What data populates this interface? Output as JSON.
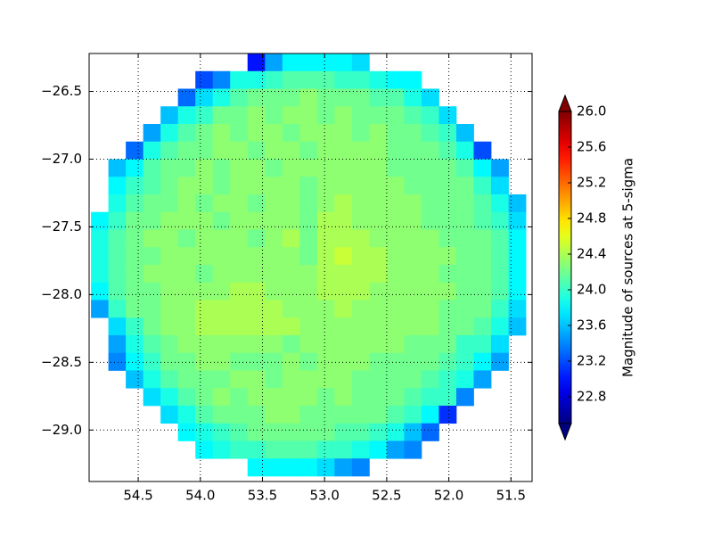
{
  "chart_data": {
    "type": "heatmap",
    "colorbar_label": "Magnitude of sources at 5-sigma",
    "colormap": "jet",
    "clim": [
      22.5,
      26.0
    ],
    "extend": "both",
    "grid": true,
    "xlim": [
      54.895,
      51.33
    ],
    "ylim": [
      -29.38,
      -26.22
    ],
    "xticks": [
      54.5,
      {
        "value": 54,
        "label": "54.0"
      },
      53.5,
      {
        "value": 53,
        "label": "53.0"
      },
      52.5,
      {
        "value": 52,
        "label": "52.0"
      },
      51.5
    ],
    "yticks": [
      {
        "value": -26.5,
        "label": "−26.5"
      },
      {
        "value": -27,
        "label": "−27.0"
      },
      {
        "value": -27.5,
        "label": "−27.5"
      },
      {
        "value": -28,
        "label": "−28.0"
      },
      {
        "value": -28.5,
        "label": "−28.5"
      },
      {
        "value": -29,
        "label": "−29.0"
      }
    ],
    "cticks": [
      22.8,
      23.2,
      23.6,
      {
        "value": 24,
        "label": "24.0"
      },
      24.4,
      24.8,
      25.2,
      25.6,
      {
        "value": 26,
        "label": "26.0"
      }
    ],
    "xbins": [
      54.88,
      54.74,
      54.6,
      54.46,
      54.32,
      54.18,
      54.04,
      53.9,
      53.76,
      53.62,
      53.48,
      53.34,
      53.2,
      53.06,
      52.92,
      52.78,
      52.64,
      52.5,
      52.36,
      52.22,
      52.08,
      51.94,
      51.8,
      51.66,
      51.52,
      51.38
    ],
    "ybins": [
      -26.22,
      -26.35,
      -26.48,
      -26.61,
      -26.74,
      -26.87,
      -27.0,
      -27.13,
      -27.26,
      -27.39,
      -27.52,
      -27.65,
      -27.78,
      -27.91,
      -28.04,
      -28.17,
      -28.3,
      -28.43,
      -28.56,
      -28.69,
      -28.82,
      -28.95,
      -29.08,
      -29.21,
      -29.34
    ],
    "values": [
      [
        null,
        null,
        null,
        null,
        null,
        null,
        null,
        null,
        null,
        23.0,
        23.5,
        23.8,
        23.8,
        23.8,
        23.8,
        23.7,
        null,
        null,
        null,
        null,
        null,
        null,
        null,
        null,
        null
      ],
      [
        null,
        null,
        null,
        null,
        null,
        null,
        23.2,
        23.4,
        23.9,
        23.9,
        24.0,
        24.1,
        24.1,
        24.1,
        24.0,
        24.0,
        23.9,
        23.8,
        23.8,
        null,
        null,
        null,
        null,
        null,
        null
      ],
      [
        null,
        null,
        null,
        null,
        null,
        23.3,
        23.7,
        23.9,
        24.1,
        24.2,
        24.2,
        24.2,
        24.3,
        24.2,
        24.2,
        24.2,
        24.1,
        24.1,
        23.9,
        23.7,
        null,
        null,
        null,
        null,
        null
      ],
      [
        null,
        null,
        null,
        null,
        23.6,
        23.9,
        24.0,
        24.2,
        24.2,
        24.3,
        24.2,
        24.3,
        24.3,
        24.2,
        24.3,
        24.2,
        24.2,
        24.2,
        24.1,
        24.0,
        23.7,
        null,
        null,
        null,
        null
      ],
      [
        null,
        null,
        null,
        23.5,
        23.9,
        24.1,
        24.2,
        24.3,
        24.2,
        24.3,
        24.3,
        24.2,
        24.3,
        24.3,
        24.3,
        24.2,
        24.3,
        24.2,
        24.2,
        24.1,
        24.0,
        23.6,
        null,
        null,
        null
      ],
      [
        null,
        null,
        23.3,
        23.9,
        24.1,
        24.2,
        24.2,
        24.3,
        24.3,
        24.2,
        24.3,
        24.3,
        24.2,
        24.3,
        24.3,
        24.3,
        24.3,
        24.2,
        24.2,
        24.2,
        24.1,
        23.9,
        23.2,
        null,
        null
      ],
      [
        null,
        23.6,
        23.8,
        24.1,
        24.2,
        24.2,
        24.3,
        24.2,
        24.3,
        24.3,
        24.2,
        24.3,
        24.3,
        24.3,
        24.3,
        24.3,
        24.3,
        24.2,
        24.2,
        24.2,
        24.2,
        24.1,
        23.8,
        23.5,
        null
      ],
      [
        null,
        23.8,
        24.0,
        24.1,
        24.2,
        24.3,
        24.3,
        24.2,
        24.3,
        24.3,
        24.3,
        24.3,
        24.2,
        24.3,
        24.3,
        24.3,
        24.3,
        24.3,
        24.2,
        24.2,
        24.2,
        24.2,
        24.0,
        23.7,
        null
      ],
      [
        null,
        23.9,
        24.1,
        24.2,
        24.2,
        24.3,
        24.2,
        24.3,
        24.3,
        24.2,
        24.3,
        24.3,
        24.2,
        24.3,
        24.4,
        24.3,
        24.3,
        24.3,
        24.3,
        24.2,
        24.2,
        24.2,
        24.1,
        23.9,
        23.6
      ],
      [
        23.8,
        24.0,
        24.2,
        24.2,
        24.3,
        24.3,
        24.3,
        24.2,
        24.3,
        24.3,
        24.3,
        24.3,
        24.2,
        24.4,
        24.4,
        24.3,
        24.3,
        24.3,
        24.3,
        24.2,
        24.2,
        24.2,
        24.1,
        24.0,
        23.7
      ],
      [
        23.9,
        24.1,
        24.2,
        24.3,
        24.3,
        24.2,
        24.3,
        24.3,
        24.3,
        24.2,
        24.3,
        24.4,
        24.2,
        24.4,
        24.4,
        24.4,
        24.3,
        24.3,
        24.3,
        24.3,
        24.2,
        24.2,
        24.2,
        24.1,
        23.8
      ],
      [
        23.9,
        24.1,
        24.2,
        24.2,
        24.3,
        24.3,
        24.3,
        24.3,
        24.3,
        24.3,
        24.3,
        24.3,
        24.2,
        24.4,
        24.5,
        24.4,
        24.4,
        24.3,
        24.3,
        24.3,
        24.3,
        24.2,
        24.2,
        24.1,
        23.8
      ],
      [
        23.9,
        24.1,
        24.2,
        24.3,
        24.3,
        24.3,
        24.2,
        24.3,
        24.3,
        24.3,
        24.3,
        24.3,
        24.3,
        24.4,
        24.4,
        24.4,
        24.4,
        24.3,
        24.3,
        24.3,
        24.2,
        24.2,
        24.2,
        24.1,
        23.8
      ],
      [
        23.8,
        24.1,
        24.2,
        24.2,
        24.3,
        24.3,
        24.3,
        24.3,
        24.4,
        24.4,
        24.3,
        24.3,
        24.3,
        24.4,
        24.4,
        24.4,
        24.3,
        24.3,
        24.3,
        24.3,
        24.3,
        24.2,
        24.2,
        24.1,
        23.8
      ],
      [
        23.5,
        24.0,
        24.2,
        24.2,
        24.3,
        24.3,
        24.4,
        24.4,
        24.4,
        24.4,
        24.4,
        24.3,
        24.3,
        24.3,
        24.4,
        24.3,
        24.3,
        24.3,
        24.3,
        24.3,
        24.2,
        24.2,
        24.2,
        24.0,
        23.7
      ],
      [
        null,
        23.7,
        24.0,
        24.2,
        24.3,
        24.3,
        24.4,
        24.4,
        24.4,
        24.4,
        24.4,
        24.4,
        24.3,
        24.3,
        24.3,
        24.3,
        24.3,
        24.3,
        24.3,
        24.3,
        24.2,
        24.2,
        24.1,
        23.9,
        23.6
      ],
      [
        null,
        23.5,
        23.9,
        24.1,
        24.2,
        24.3,
        24.3,
        24.3,
        24.3,
        24.3,
        24.3,
        24.2,
        24.3,
        24.3,
        24.3,
        24.3,
        24.3,
        24.3,
        24.2,
        24.2,
        24.2,
        24.0,
        24.0,
        23.7,
        null
      ],
      [
        null,
        23.4,
        23.8,
        24.0,
        24.2,
        24.2,
        24.3,
        24.3,
        24.2,
        24.2,
        24.2,
        24.3,
        24.2,
        24.3,
        24.3,
        24.3,
        24.2,
        24.2,
        24.2,
        24.2,
        24.1,
        24.0,
        23.8,
        23.5,
        null
      ],
      [
        null,
        null,
        23.6,
        23.9,
        24.1,
        24.2,
        24.2,
        24.2,
        24.3,
        24.3,
        24.2,
        24.3,
        24.3,
        24.3,
        24.3,
        24.2,
        24.2,
        24.2,
        24.2,
        24.1,
        24.0,
        23.9,
        23.5,
        null,
        null
      ],
      [
        null,
        null,
        null,
        23.7,
        23.9,
        24.1,
        24.2,
        24.3,
        24.2,
        24.3,
        24.3,
        24.3,
        24.3,
        24.2,
        24.3,
        24.2,
        24.2,
        24.2,
        24.1,
        24.0,
        24.0,
        23.4,
        null,
        null,
        null
      ],
      [
        null,
        null,
        null,
        null,
        23.7,
        23.9,
        24.1,
        24.2,
        24.2,
        24.2,
        24.3,
        24.3,
        24.2,
        24.2,
        24.2,
        24.2,
        24.2,
        24.1,
        24.0,
        23.8,
        23.1,
        null,
        null,
        null,
        null
      ],
      [
        null,
        null,
        null,
        null,
        null,
        23.8,
        23.9,
        24.0,
        24.1,
        24.2,
        24.2,
        24.2,
        24.2,
        24.2,
        24.1,
        24.1,
        24.0,
        23.9,
        23.6,
        23.3,
        null,
        null,
        null,
        null,
        null
      ],
      [
        null,
        null,
        null,
        null,
        null,
        null,
        23.8,
        23.9,
        24.0,
        24.0,
        24.1,
        24.1,
        24.1,
        24.0,
        24.0,
        23.9,
        23.8,
        23.5,
        23.4,
        null,
        null,
        null,
        null,
        null,
        null
      ],
      [
        null,
        null,
        null,
        null,
        null,
        null,
        null,
        null,
        null,
        23.8,
        23.8,
        23.8,
        23.8,
        23.7,
        23.5,
        23.4,
        null,
        null,
        null,
        null,
        null,
        null,
        null,
        null,
        null
      ]
    ]
  }
}
